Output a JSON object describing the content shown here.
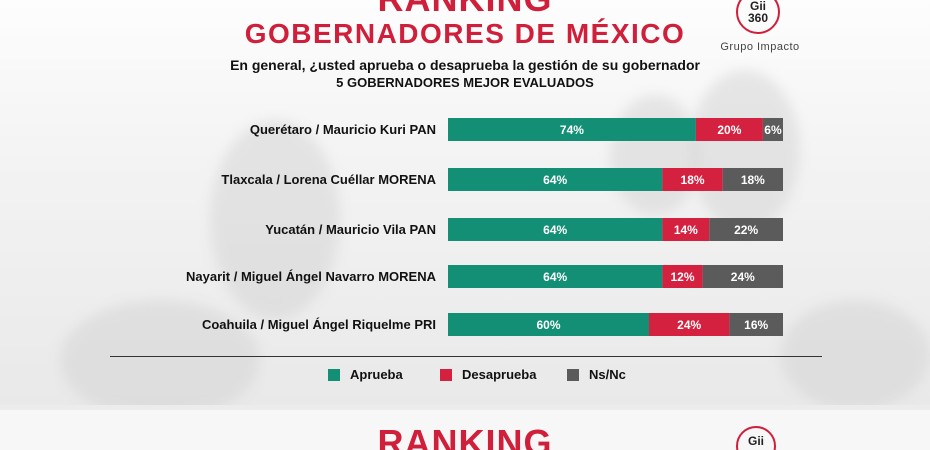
{
  "header": {
    "title_top": "RANKING",
    "title_main": "GOBERNADORES DE MÉXICO",
    "question": "En general, ¿usted aprueba o desaprueba la gestión de su gobernador",
    "subtitle": "5 GOBERNADORES MEJOR EVALUADOS"
  },
  "logo": {
    "line1": "Gii",
    "line2": "360",
    "caption": "Grupo Impacto"
  },
  "colors": {
    "aprueba": "#138f75",
    "desaprueba": "#d4213f",
    "nsnc": "#5b5b5b",
    "accent": "#d01f3a"
  },
  "chart_data": {
    "type": "bar",
    "orientation": "horizontal",
    "stacked": true,
    "categories": [
      "Querétaro / Mauricio Kuri PAN",
      "Tlaxcala / Lorena Cuéllar MORENA",
      "Yucatán / Mauricio Vila PAN",
      "Nayarit / Miguel Ángel Navarro MORENA",
      "Coahuila / Miguel Ángel Riquelme PRI"
    ],
    "series": [
      {
        "name": "Aprueba",
        "values": [
          74,
          64,
          64,
          64,
          60
        ]
      },
      {
        "name": "Desaprueba",
        "values": [
          20,
          18,
          14,
          12,
          24
        ]
      },
      {
        "name": "Ns/Nc",
        "values": [
          6,
          18,
          22,
          24,
          16
        ]
      }
    ],
    "value_suffix": "%",
    "xlim": [
      0,
      100
    ],
    "legend_position": "bottom",
    "grid": false
  },
  "footer_card": {
    "title_top": "RANKING",
    "logo_text": "Gii"
  }
}
